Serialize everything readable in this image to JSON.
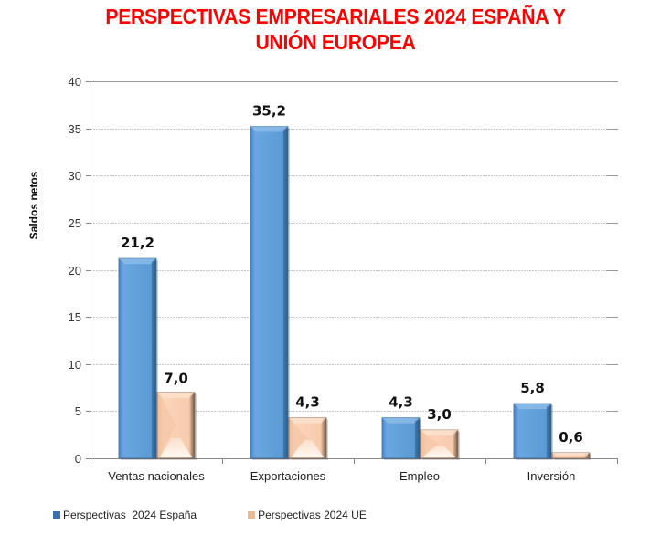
{
  "chart_data": {
    "type": "bar",
    "title": "PERSPECTIVAS EMPRESARIALES 2024 ESPAÑA Y UNIÓN EUROPEA",
    "title_lines": [
      "PERSPECTIVAS EMPRESARIALES 2024 ESPAÑA Y",
      "UNIÓN EUROPEA"
    ],
    "xlabel": "",
    "ylabel": "Saldos netos",
    "ylim": [
      0,
      40
    ],
    "yticks": [
      0,
      5,
      10,
      15,
      20,
      25,
      30,
      35,
      40
    ],
    "grid": true,
    "legend_position": "bottom-left",
    "categories": [
      "Ventas nacionales",
      "Exportaciones",
      "Empleo",
      "Inversión"
    ],
    "series": [
      {
        "name": "Perspectivas  2024 España",
        "color": "#5b9bd5",
        "values": [
          21.2,
          35.2,
          4.3,
          5.8
        ],
        "labels": [
          "21,2",
          "35,2",
          "4,3",
          "5,8"
        ]
      },
      {
        "name": "Perspectivas 2024 UE",
        "color": "#f8cbad",
        "values": [
          7.0,
          4.3,
          3.0,
          0.6
        ],
        "labels": [
          "7,0",
          "4,3",
          "3,0",
          "0,6"
        ]
      }
    ]
  }
}
